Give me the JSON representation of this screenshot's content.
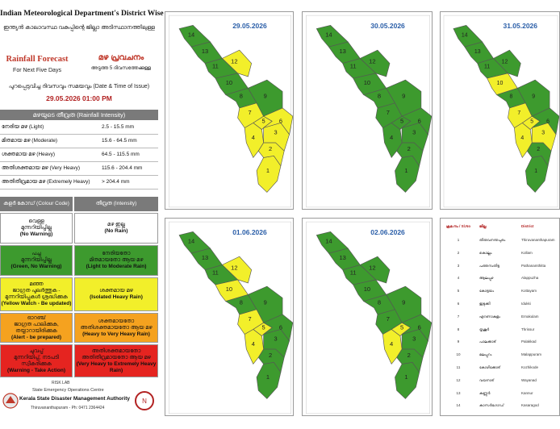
{
  "header": {
    "title": "Indian Meteorological Department's District Wise",
    "title_ml": "ഇന്ത്യൻ കാലാവസ്ഥ വകുപ്പിന്റെ ജില്ലാ അടിസ്ഥാനത്തിലുള്ള",
    "forecast_en": "Rainfall Forecast",
    "forecast_ml": "മഴ പ്രവചനം",
    "sub_en": "For Next Five Days",
    "sub_ml": "അടുത്ത 5 ദിവസത്തേക്കുള്ള",
    "issue_label": "പുറപ്പെടുവിച്ച ദിവസവും സമയവും (Date & Time of Issue)",
    "issue_datetime": "29.05.2026   01:00 PM"
  },
  "intensity": {
    "heading": "മഴയുടെ തീവ്രത (Rainfall Intensity)",
    "rows": [
      {
        "label": "നേരിയ മഴ (Light)",
        "range": "2.5 - 15.5 mm"
      },
      {
        "label": "മിതമായ മഴ (Moderate)",
        "range": "15.6 - 64.5 mm"
      },
      {
        "label": "ശക്തമായ മഴ (Heavy)",
        "range": "64.5 - 115.5 mm"
      },
      {
        "label": "അതിശക്തമായ മഴ (Very Heavy)",
        "range": "115.6 - 204.4 mm"
      },
      {
        "label": "അതിതീവ്രമായ മഴ (Extremely Heavy)",
        "range": "> 204.4 mm"
      }
    ]
  },
  "legend": {
    "col1": "കളർ കോഡ് (Colour Code)",
    "col2": "തീവ്രത (Intensity)",
    "rows": [
      {
        "color": "#ffffff",
        "c_ml": "വെള്ള\nമുന്നറിയിപ്പില്ല",
        "c_en": "(No Warning)",
        "i_ml": "മഴ ഇല്ല",
        "i_en": "(No Rain)"
      },
      {
        "color": "#3d9a2e",
        "c_ml": "പച്ച\nമുന്നറിയിപ്പില്ല",
        "c_en": "(Green, No Warning)",
        "i_ml": "നേരിയതോ\nമിതമായതോ ആയ മഴ",
        "i_en": "(Light to Moderate Rain)"
      },
      {
        "color": "#f2ef2a",
        "c_ml": "മഞ്ഞ\nജാഗ്രത പുലർത്തുക -\nമുന്നറിയിപ്പുകൾ ശ്രദ്ധിക്കുക",
        "c_en": "(Yellow Watch - Be updated)",
        "i_ml": "ശക്തമായ മഴ",
        "i_en": "(Isolated Heavy Rain)"
      },
      {
        "color": "#f5a21f",
        "c_ml": "ഓറഞ്ച്\nജാഗ്രത പാലിക്കുക,\nതയ്യാറായിരിക്കുക",
        "c_en": "(Alert - be prepared)",
        "i_ml": "ശക്തമായതോ\nഅതിശക്തമായതോ ആയ മഴ",
        "i_en": "(Heavy to Very Heavy Rain)"
      },
      {
        "color": "#e52420",
        "c_ml": "ചുവപ്പ്\nമുന്നറിയിപ്പ്, നടപടി സ്വീകരിക്കുക",
        "c_en": "(Warning - Take Action)",
        "i_ml": "അതിശക്തമായതോ\nഅതിതീവ്രമായതോ ആയ മഴ",
        "i_en": "(Very Heavy to Extremely Heavy Rain)"
      }
    ]
  },
  "footer": {
    "risk_lab": "RISK LAB",
    "centre": "State Emergency Operations Centre",
    "authority": "Kerala State Disaster Management Authority",
    "contact": "Thiruvananthapuram - Ph: 0471 2364424",
    "logo_text": "KSDMA"
  },
  "maps": [
    {
      "date": "29.05.2026",
      "colors": [
        "#f2ef2a",
        "#f2ef2a",
        "#f2ef2a",
        "#f2ef2a",
        "#f2ef2a",
        "#f2ef2a",
        "#f2ef2a",
        "#3d9a2e",
        "#3d9a2e",
        "#3d9a2e",
        "#3d9a2e",
        "#f2ef2a",
        "#3d9a2e",
        "#3d9a2e"
      ]
    },
    {
      "date": "30.05.2026",
      "colors": [
        "#3d9a2e",
        "#3d9a2e",
        "#3d9a2e",
        "#3d9a2e",
        "#3d9a2e",
        "#3d9a2e",
        "#3d9a2e",
        "#3d9a2e",
        "#3d9a2e",
        "#3d9a2e",
        "#3d9a2e",
        "#3d9a2e",
        "#3d9a2e",
        "#3d9a2e"
      ]
    },
    {
      "date": "31.05.2026",
      "colors": [
        "#3d9a2e",
        "#3d9a2e",
        "#f2ef2a",
        "#f2ef2a",
        "#f2ef2a",
        "#3d9a2e",
        "#f2ef2a",
        "#3d9a2e",
        "#3d9a2e",
        "#f2ef2a",
        "#3d9a2e",
        "#3d9a2e",
        "#3d9a2e",
        "#3d9a2e"
      ]
    },
    {
      "date": "01.06.2026",
      "colors": [
        "#3d9a2e",
        "#3d9a2e",
        "#3d9a2e",
        "#f2ef2a",
        "#f2ef2a",
        "#3d9a2e",
        "#f2ef2a",
        "#3d9a2e",
        "#3d9a2e",
        "#f2ef2a",
        "#3d9a2e",
        "#f2ef2a",
        "#3d9a2e",
        "#3d9a2e"
      ]
    },
    {
      "date": "02.06.2026",
      "colors": [
        "#3d9a2e",
        "#3d9a2e",
        "#3d9a2e",
        "#f2ef2a",
        "#f2ef2a",
        "#3d9a2e",
        "#3d9a2e",
        "#3d9a2e",
        "#3d9a2e",
        "#3d9a2e",
        "#3d9a2e",
        "#3d9a2e",
        "#3d9a2e",
        "#3d9a2e"
      ]
    }
  ],
  "district_table": {
    "headers": [
      "ക്രമ.നം / Sl.No",
      "ജില്ല",
      "District"
    ],
    "rows": [
      {
        "no": "1",
        "ml": "തിരുവനന്തപുരം",
        "en": "Thiruvananthapuram"
      },
      {
        "no": "2",
        "ml": "കൊല്ലം",
        "en": "Kollam"
      },
      {
        "no": "3",
        "ml": "പത്തനംതിട്ട",
        "en": "Pathanamthitta"
      },
      {
        "no": "4",
        "ml": "ആലപ്പുഴ",
        "en": "Alappuzha"
      },
      {
        "no": "5",
        "ml": "കോട്ടയം",
        "en": "Kottayam"
      },
      {
        "no": "6",
        "ml": "ഇടുക്കി",
        "en": "Idukki"
      },
      {
        "no": "7",
        "ml": "എറണാകുളം",
        "en": "Ernakulam"
      },
      {
        "no": "8",
        "ml": "തൃശൂർ",
        "en": "Thrissur"
      },
      {
        "no": "9",
        "ml": "പാലക്കാട്",
        "en": "Palakkad"
      },
      {
        "no": "10",
        "ml": "മലപ്പുറം",
        "en": "Malappuram"
      },
      {
        "no": "11",
        "ml": "കോഴിക്കോട്",
        "en": "Kozhikode"
      },
      {
        "no": "12",
        "ml": "വയനാട്",
        "en": "Wayanad"
      },
      {
        "no": "13",
        "ml": "കണ്ണൂർ",
        "en": "Kannur"
      },
      {
        "no": "14",
        "ml": "കാസർഗോഡ്",
        "en": "Kasaragod"
      }
    ]
  }
}
